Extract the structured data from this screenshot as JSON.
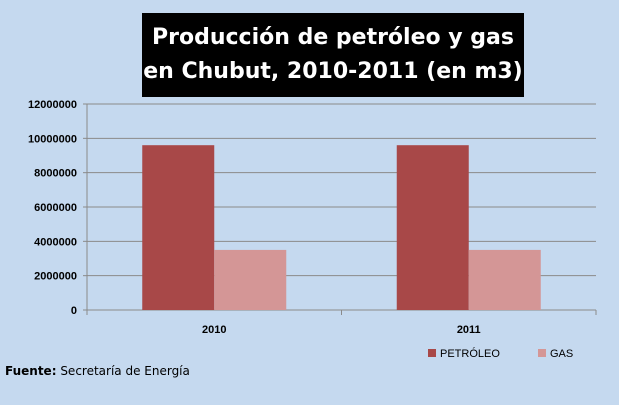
{
  "chart_data": {
    "type": "bar",
    "title_line1": "Producción de petróleo  y gas",
    "title_line2": "en Chubut, 2010-2011  (en m3)",
    "categories": [
      "2010",
      "2011"
    ],
    "series": [
      {
        "name": "PETRÓLEO",
        "values": [
          9600000,
          9600000
        ],
        "color": "#a84848"
      },
      {
        "name": "GAS",
        "values": [
          3500000,
          3500000
        ],
        "color": "#d49696"
      }
    ],
    "ylim": [
      0,
      12000000
    ],
    "yticks": [
      "0",
      "2000000",
      "4000000",
      "6000000",
      "8000000",
      "10000000",
      "12000000"
    ],
    "grid": true,
    "legend": "bottom-right"
  },
  "source": {
    "label": "Fuente:",
    "text": " Secretaría de Energía"
  }
}
